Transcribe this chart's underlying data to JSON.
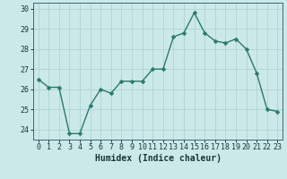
{
  "x": [
    0,
    1,
    2,
    3,
    4,
    5,
    6,
    7,
    8,
    9,
    10,
    11,
    12,
    13,
    14,
    15,
    16,
    17,
    18,
    19,
    20,
    21,
    22,
    23
  ],
  "y": [
    26.5,
    26.1,
    26.1,
    23.8,
    23.8,
    25.2,
    26.0,
    25.8,
    26.4,
    26.4,
    26.4,
    27.0,
    27.0,
    28.6,
    28.8,
    29.8,
    28.8,
    28.4,
    28.3,
    28.5,
    28.0,
    26.8,
    25.0,
    24.9
  ],
  "title": "",
  "xlabel": "Humidex (Indice chaleur)",
  "ylabel": "",
  "ylim": [
    23.5,
    30.3
  ],
  "yticks": [
    24,
    25,
    26,
    27,
    28,
    29,
    30
  ],
  "xticks": [
    0,
    1,
    2,
    3,
    4,
    5,
    6,
    7,
    8,
    9,
    10,
    11,
    12,
    13,
    14,
    15,
    16,
    17,
    18,
    19,
    20,
    21,
    22,
    23
  ],
  "line_color": "#2a7a6a",
  "marker_color": "#2a7a6a",
  "bg_color": "#cce9e9",
  "grid_color": "#aacfcf",
  "axis_color": "#3a6a6a",
  "tick_label_color": "#1a3535",
  "xlabel_color": "#1a3535",
  "font_size_tick": 6.0,
  "font_size_xlabel": 7.0,
  "marker_size": 2.5,
  "line_width": 1.0
}
